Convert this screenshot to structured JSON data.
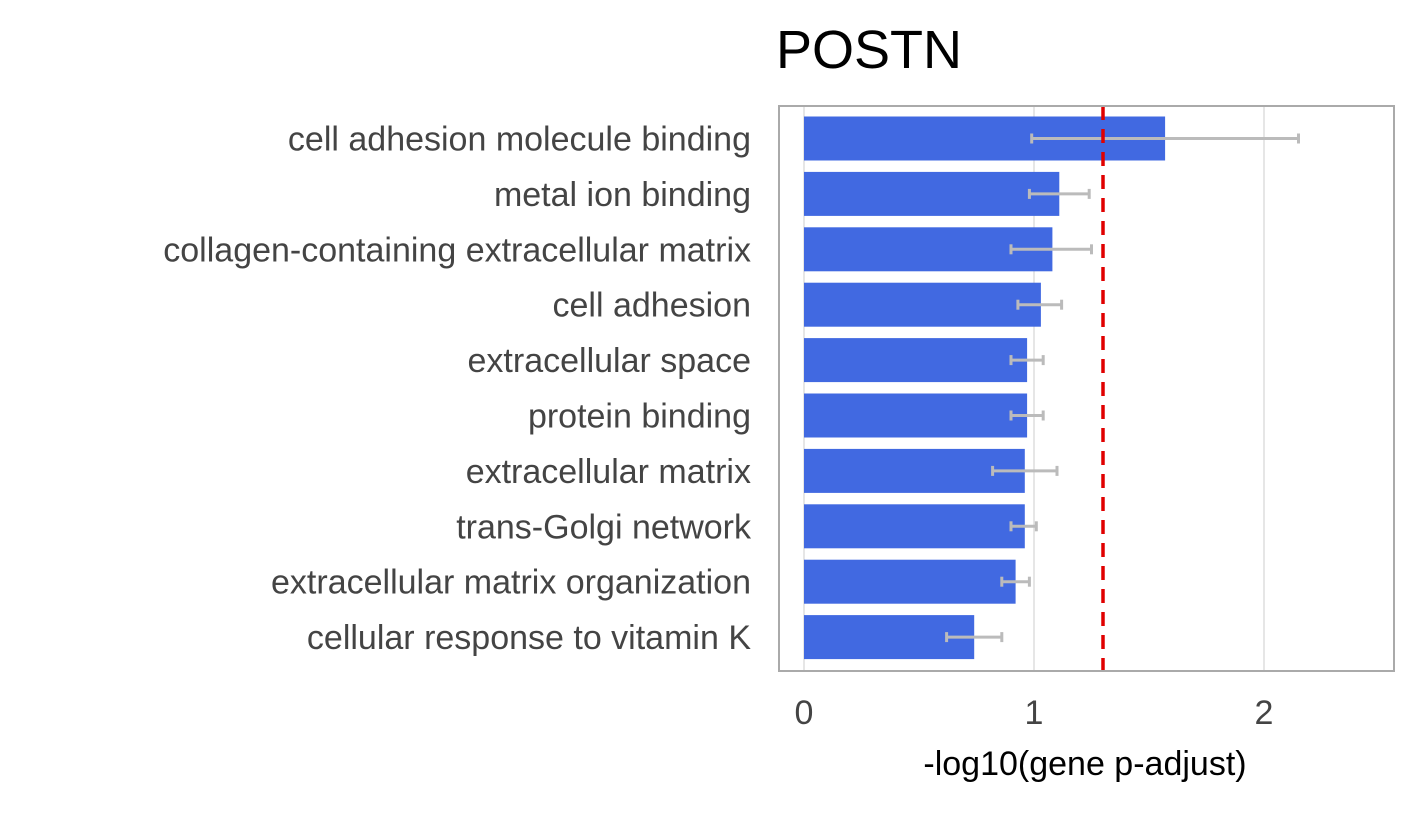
{
  "chart_data": {
    "type": "bar",
    "orientation": "horizontal",
    "title": "POSTN",
    "xlabel": "-log10(gene p-adjust)",
    "ylabel": "",
    "xlim": [
      0,
      2.58
    ],
    "xticks": [
      0,
      1,
      2
    ],
    "xtick_labels": [
      "0",
      "1",
      "2"
    ],
    "grid": "vertical",
    "categories": [
      "cell adhesion molecule binding",
      "metal ion binding",
      "collagen-containing extracellular matrix",
      "cell adhesion",
      "extracellular space",
      "protein binding",
      "extracellular matrix",
      "trans-Golgi network",
      "extracellular matrix organization",
      "cellular response to vitamin K"
    ],
    "values": [
      1.57,
      1.11,
      1.08,
      1.03,
      0.97,
      0.97,
      0.96,
      0.96,
      0.92,
      0.74
    ],
    "error_low": [
      0.99,
      0.98,
      0.9,
      0.93,
      0.9,
      0.9,
      0.82,
      0.9,
      0.86,
      0.62
    ],
    "error_high": [
      2.15,
      1.24,
      1.25,
      1.12,
      1.04,
      1.04,
      1.1,
      1.01,
      0.98,
      0.86
    ],
    "threshold": 1.3,
    "colors": {
      "bar": "#4169E1",
      "error_bar": "#BBBBBB",
      "threshold_line": "#E00000",
      "frame": "#AAAAAA",
      "grid": "#DDDDDD"
    }
  }
}
